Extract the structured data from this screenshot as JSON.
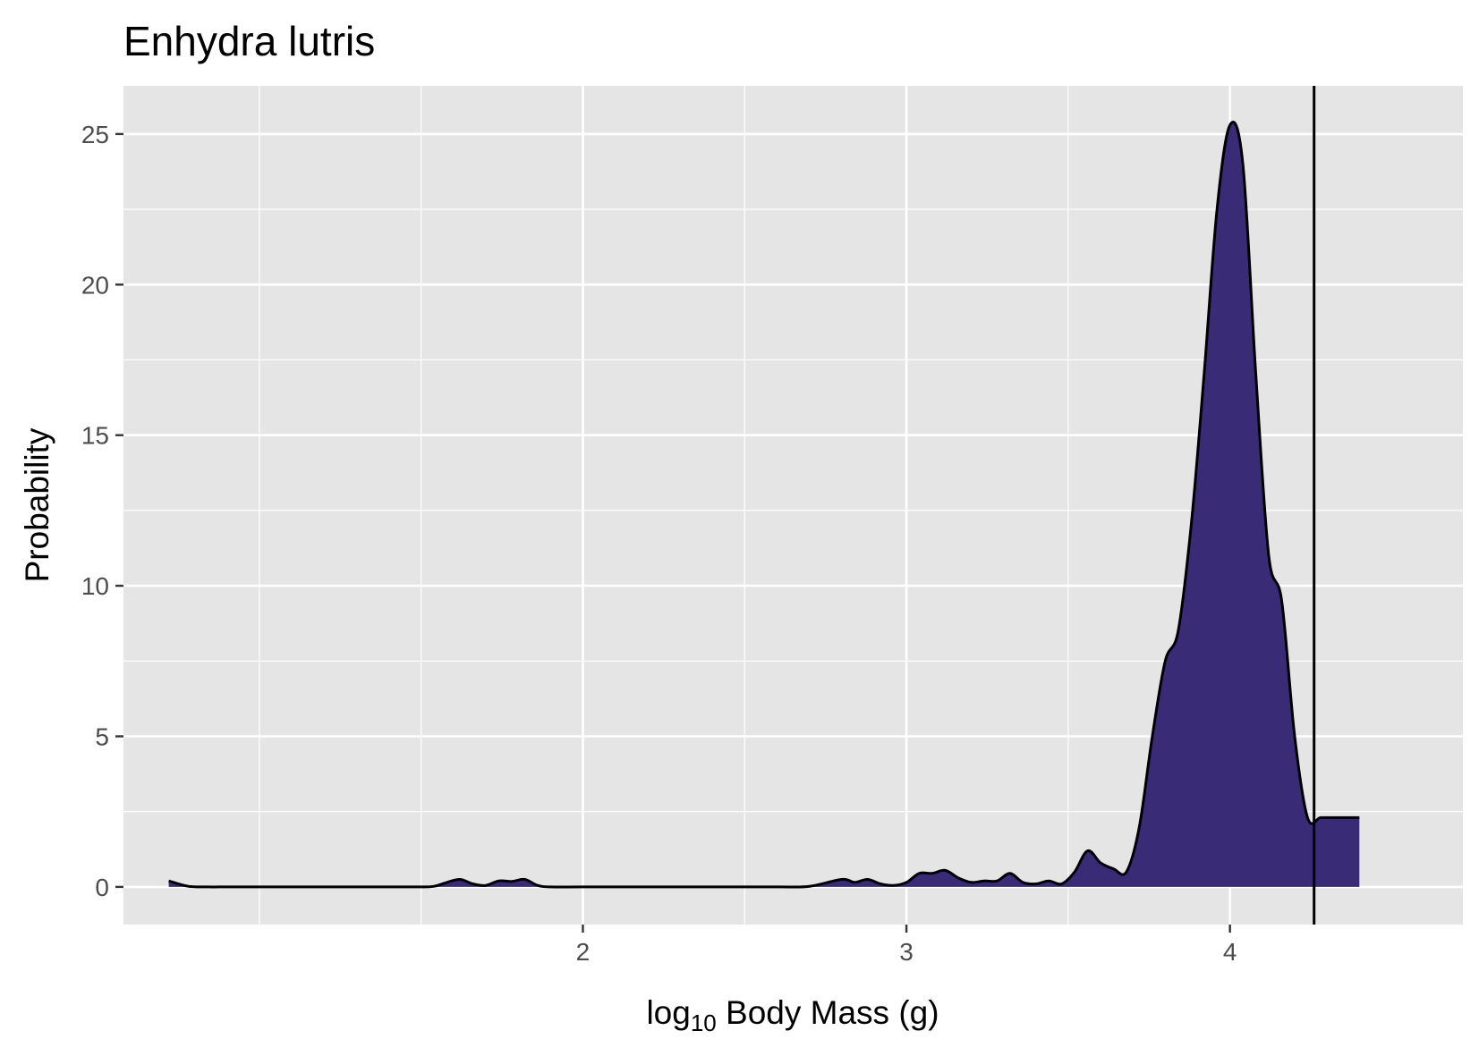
{
  "chart_data": {
    "type": "area",
    "title": "Enhydra lutris",
    "xlabel_main": "log",
    "xlabel_sub": "10",
    "xlabel_rest": " Body Mass (g)",
    "ylabel": "Probability",
    "xlim": [
      0.58,
      4.72
    ],
    "ylim": [
      -1.25,
      26.6
    ],
    "x_ticks": [
      2,
      3,
      4
    ],
    "x_tick_labels": [
      "2",
      "3",
      "4"
    ],
    "x_minor_ticks": [
      1.0,
      1.5,
      2.5,
      3.5
    ],
    "y_ticks": [
      0,
      5,
      10,
      15,
      20,
      25
    ],
    "y_tick_labels": [
      "0",
      "5",
      "10",
      "15",
      "20",
      "25"
    ],
    "y_minor_ticks": [
      2.5,
      7.5,
      12.5,
      17.5,
      22.5
    ],
    "grid": true,
    "fill_color": "#3a2b76",
    "line_color": "#000000",
    "panel_color": "#e5e5e5",
    "grid_color": "#ffffff",
    "vline_x": 4.26,
    "x": [
      0.72,
      0.78,
      0.84,
      0.9,
      1.0,
      1.2,
      1.4,
      1.5,
      1.54,
      1.58,
      1.62,
      1.66,
      1.7,
      1.74,
      1.78,
      1.82,
      1.86,
      1.9,
      2.0,
      2.2,
      2.4,
      2.6,
      2.7,
      2.8,
      2.84,
      2.88,
      2.92,
      2.96,
      3.0,
      3.04,
      3.08,
      3.12,
      3.16,
      3.2,
      3.24,
      3.28,
      3.32,
      3.36,
      3.4,
      3.44,
      3.48,
      3.52,
      3.56,
      3.6,
      3.64,
      3.68,
      3.72,
      3.76,
      3.8,
      3.84,
      3.88,
      3.92,
      3.96,
      4.0,
      4.04,
      4.08,
      4.12,
      4.16,
      4.2,
      4.24,
      4.28,
      4.32,
      4.36,
      4.4
    ],
    "y": [
      0.2,
      0.02,
      0.0,
      0.0,
      0.0,
      0.0,
      0.0,
      0.0,
      0.02,
      0.15,
      0.25,
      0.1,
      0.05,
      0.2,
      0.18,
      0.25,
      0.05,
      0.0,
      0.0,
      0.0,
      0.0,
      0.0,
      0.02,
      0.25,
      0.15,
      0.25,
      0.1,
      0.05,
      0.15,
      0.45,
      0.45,
      0.55,
      0.3,
      0.15,
      0.2,
      0.2,
      0.45,
      0.15,
      0.1,
      0.2,
      0.1,
      0.5,
      1.2,
      0.8,
      0.6,
      0.5,
      2.0,
      5.0,
      7.5,
      8.5,
      12.0,
      17.0,
      22.5,
      25.3,
      24.0,
      17.0,
      11.0,
      9.5,
      5.0,
      2.3,
      2.3,
      2.3,
      2.3,
      2.3
    ]
  }
}
